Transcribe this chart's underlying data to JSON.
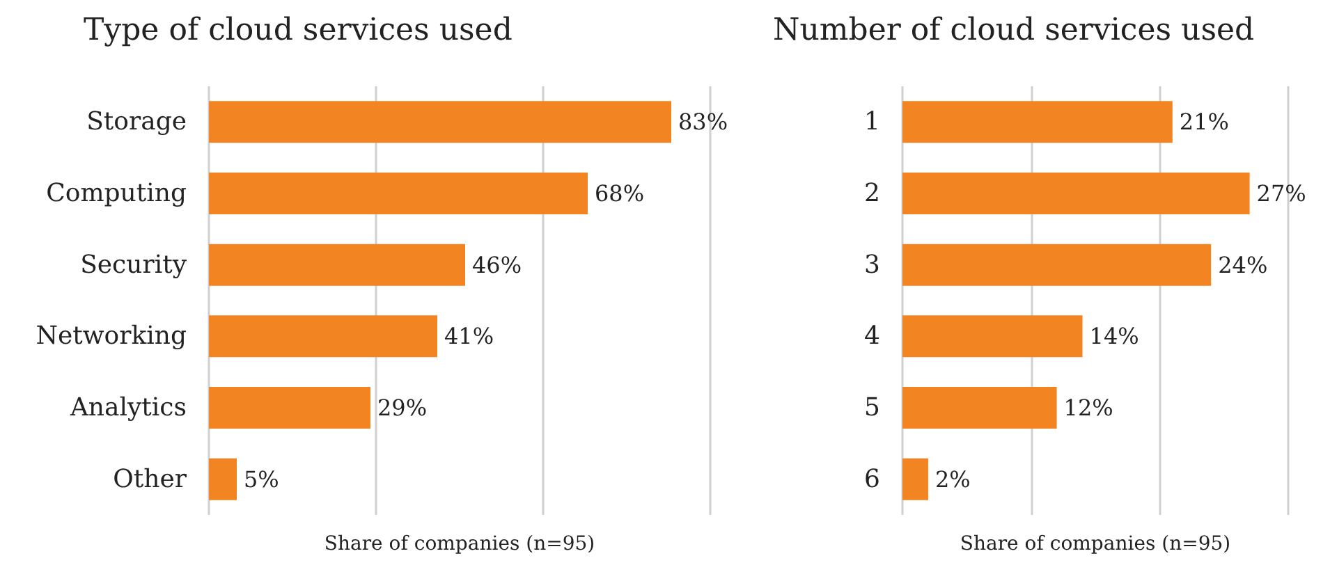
{
  "chart_data": [
    {
      "type": "bar",
      "orientation": "horizontal",
      "title": "Type of cloud services used",
      "xlabel": "Share of companies (n=95)",
      "categories": [
        "Storage",
        "Computing",
        "Security",
        "Networking",
        "Analytics",
        "Other"
      ],
      "values": [
        83,
        68,
        46,
        41,
        29,
        5
      ],
      "value_labels": [
        "83%",
        "68%",
        "46%",
        "41%",
        "29%",
        "5%"
      ],
      "color": "#f28522",
      "xlim": [
        0,
        90
      ],
      "xticks": [
        {
          "value": 0,
          "label": null
        },
        {
          "value": 30,
          "label": null
        },
        {
          "value": 60,
          "label": null
        },
        {
          "value": 90,
          "label": null
        }
      ],
      "grid": "x",
      "tick_labels": "y"
    },
    {
      "type": "bar",
      "orientation": "horizontal",
      "title": "Number of cloud services used",
      "xlabel": "Share of companies (n=95)",
      "categories": [
        "1",
        "2",
        "3",
        "4",
        "5",
        "6"
      ],
      "values": [
        21,
        27,
        24,
        14,
        12,
        2
      ],
      "value_labels": [
        "21%",
        "27%",
        "24%",
        "14%",
        "12%",
        "2%"
      ],
      "color": "#f28522",
      "xlim": [
        0,
        30
      ],
      "xticks": [
        {
          "value": 0,
          "label": null
        },
        {
          "value": 10,
          "label": null
        },
        {
          "value": 20,
          "label": null
        },
        {
          "value": 30,
          "label": null
        }
      ],
      "grid": "x",
      "tick_labels": "y"
    }
  ]
}
